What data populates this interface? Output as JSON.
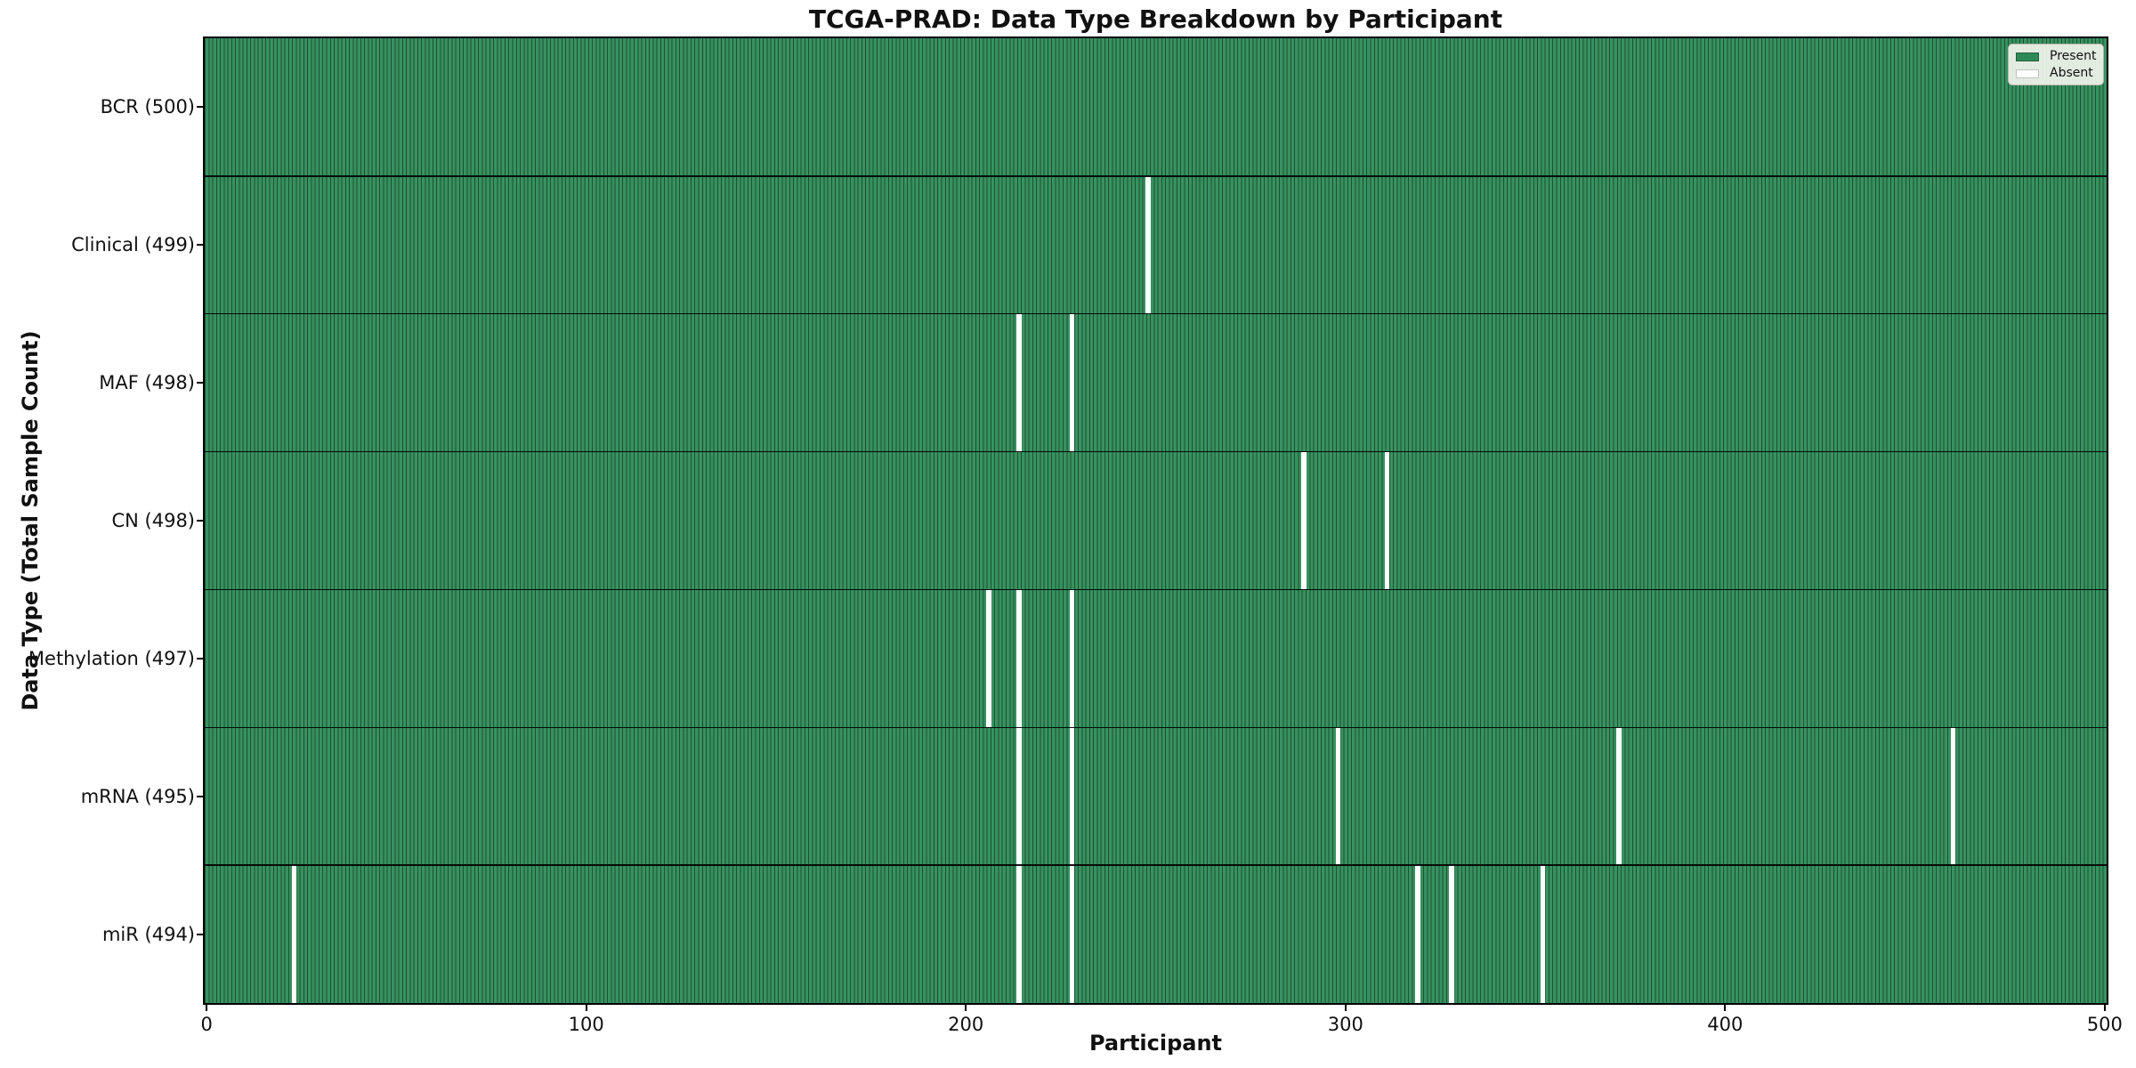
{
  "chart_data": {
    "type": "heatmap",
    "title": "TCGA-PRAD: Data Type Breakdown by Participant",
    "xlabel": "Participant",
    "ylabel": "Data Type (Total Sample Count)",
    "x_ticks": [
      0,
      100,
      200,
      300,
      400,
      500
    ],
    "xlim": [
      -0.5,
      500.5
    ],
    "n_participants": 500,
    "grid": false,
    "legend": {
      "position": "upper right",
      "entries": [
        {
          "label": "Present",
          "color": "#2e8b57"
        },
        {
          "label": "Absent",
          "color": "#ffffff"
        }
      ]
    },
    "rows": [
      {
        "label": "BCR (500)",
        "data_type": "BCR",
        "present_count": 500,
        "absent_participants": []
      },
      {
        "label": "Clinical (499)",
        "data_type": "Clinical",
        "present_count": 499,
        "absent_participants": [
          248
        ]
      },
      {
        "label": "MAF (498)",
        "data_type": "MAF",
        "present_count": 498,
        "absent_participants": [
          214,
          228
        ]
      },
      {
        "label": "CN (498)",
        "data_type": "CN",
        "present_count": 498,
        "absent_participants": [
          289,
          311
        ]
      },
      {
        "label": "Methylation (497)",
        "data_type": "Methylation",
        "present_count": 497,
        "absent_participants": [
          206,
          214,
          228
        ]
      },
      {
        "label": "mRNA (495)",
        "data_type": "mRNA",
        "present_count": 495,
        "absent_participants": [
          214,
          228,
          298,
          372,
          460
        ]
      },
      {
        "label": "miR (494)",
        "data_type": "miR",
        "present_count": 494,
        "absent_participants": [
          23,
          214,
          228,
          319,
          328,
          352
        ]
      }
    ],
    "colors": {
      "present_fill": "#37925f",
      "bar_edge": "#1e5033",
      "absent": "#ffffff",
      "row_separator": "#000000",
      "legend_background": "#f0f3ec",
      "legend_border": "#b7b7af",
      "text": "#000000"
    }
  }
}
